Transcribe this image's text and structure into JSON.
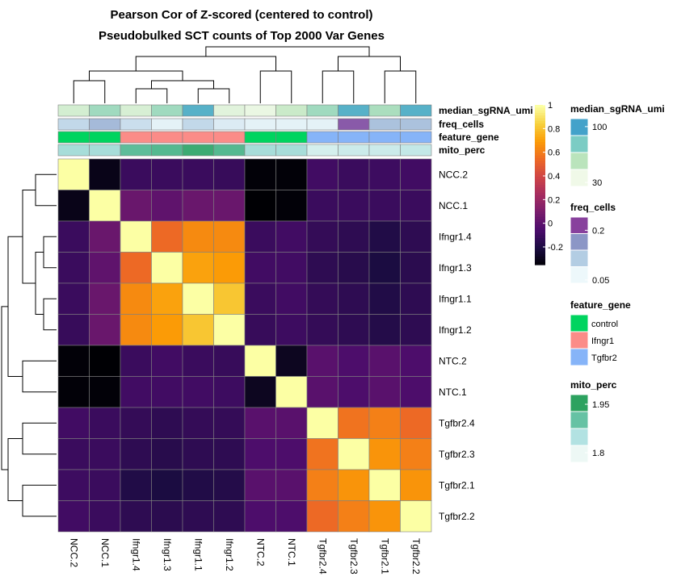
{
  "chart_data": {
    "type": "heatmap",
    "title": "Pearson Cor of Z-scored (centered to control)",
    "subtitle": "Pseudobulked SCT counts of Top 2000 Var Genes",
    "rows": [
      "NCC.2",
      "NCC.1",
      "Ifngr1.4",
      "Ifngr1.3",
      "Ifngr1.1",
      "Ifngr1.2",
      "NTC.2",
      "NTC.1",
      "Tgfbr2.4",
      "Tgfbr2.3",
      "Tgfbr2.1",
      "Tgfbr2.2"
    ],
    "columns": [
      "NCC.2",
      "NCC.1",
      "Ifngr1.4",
      "Ifngr1.3",
      "Ifngr1.1",
      "Ifngr1.2",
      "NTC.2",
      "NTC.1",
      "Tgfbr2.4",
      "Tgfbr2.3",
      "Tgfbr2.1",
      "Tgfbr2.2"
    ],
    "values": [
      [
        1.0,
        -0.3,
        -0.1,
        -0.1,
        -0.1,
        -0.11,
        -0.34,
        -0.34,
        -0.08,
        -0.1,
        -0.09,
        -0.08
      ],
      [
        -0.3,
        1.0,
        0.05,
        0.02,
        0.05,
        0.05,
        -0.36,
        -0.34,
        -0.1,
        -0.1,
        -0.1,
        -0.1
      ],
      [
        -0.1,
        0.05,
        1.0,
        0.55,
        0.65,
        0.65,
        -0.1,
        -0.08,
        -0.12,
        -0.14,
        -0.18,
        -0.14
      ],
      [
        -0.1,
        0.02,
        0.55,
        1.0,
        0.72,
        0.7,
        -0.08,
        -0.08,
        -0.14,
        -0.16,
        -0.2,
        -0.15
      ],
      [
        -0.1,
        0.05,
        0.65,
        0.72,
        1.0,
        0.82,
        -0.1,
        -0.08,
        -0.12,
        -0.14,
        -0.18,
        -0.14
      ],
      [
        -0.11,
        0.05,
        0.65,
        0.7,
        0.82,
        1.0,
        -0.11,
        -0.09,
        -0.12,
        -0.14,
        -0.17,
        -0.14
      ],
      [
        -0.34,
        -0.36,
        -0.1,
        -0.08,
        -0.1,
        -0.11,
        1.0,
        -0.28,
        0.0,
        -0.04,
        0.0,
        -0.04
      ],
      [
        -0.34,
        -0.34,
        -0.08,
        -0.08,
        -0.08,
        -0.09,
        -0.28,
        1.0,
        0.0,
        -0.04,
        0.0,
        -0.04
      ],
      [
        -0.08,
        -0.1,
        -0.12,
        -0.14,
        -0.12,
        -0.12,
        0.0,
        0.0,
        1.0,
        0.58,
        0.62,
        0.55
      ],
      [
        -0.1,
        -0.1,
        -0.14,
        -0.16,
        -0.14,
        -0.14,
        -0.04,
        -0.04,
        0.58,
        1.0,
        0.68,
        0.62
      ],
      [
        -0.09,
        -0.1,
        -0.18,
        -0.2,
        -0.18,
        -0.17,
        0.0,
        0.0,
        0.62,
        0.68,
        1.0,
        0.68
      ],
      [
        -0.08,
        -0.1,
        -0.14,
        -0.15,
        -0.14,
        -0.14,
        -0.04,
        -0.04,
        0.55,
        0.62,
        0.68,
        1.0
      ]
    ],
    "color_scale": {
      "min": -0.35,
      "max": 1,
      "ticks": [
        "1",
        "0.8",
        "0.6",
        "0.4",
        "0.2",
        "0",
        "-0.2"
      ],
      "tick_values": [
        1,
        0.8,
        0.6,
        0.4,
        0.2,
        0,
        -0.2
      ],
      "palette": "inferno"
    },
    "annotations": [
      {
        "name": "median_sgRNA_umi",
        "values": [
          40,
          65,
          38,
          65,
          100,
          33,
          28,
          45,
          65,
          100,
          60,
          100
        ],
        "range": [
          25,
          110
        ],
        "legend_ticks": [
          "100",
          "30"
        ],
        "legend_tick_values": [
          100,
          30
        ],
        "colors": [
          "#f0f9e8",
          "#bae4bc",
          "#7bccc4",
          "#43a2ca"
        ]
      },
      {
        "name": "freq_cells",
        "values": [
          0.09,
          0.13,
          0.08,
          0.05,
          0.09,
          0.06,
          0.05,
          0.05,
          0.05,
          0.22,
          0.12,
          0.12
        ],
        "range": [
          0.04,
          0.24
        ],
        "legend_ticks": [
          "0.2",
          "0.05"
        ],
        "legend_tick_values": [
          0.2,
          0.05
        ],
        "colors": [
          "#edf8fb",
          "#b3cde3",
          "#8c96c6",
          "#88419d"
        ]
      },
      {
        "name": "feature_gene",
        "categorical": true,
        "values": [
          "control",
          "control",
          "Ifngr1",
          "Ifngr1",
          "Ifngr1",
          "Ifngr1",
          "control",
          "control",
          "Tgfbr2",
          "Tgfbr2",
          "Tgfbr2",
          "Tgfbr2"
        ],
        "categories": [
          "control",
          "Ifngr1",
          "Tgfbr2"
        ],
        "category_colors": {
          "control": "#00d45f",
          "Ifngr1": "#fb8c88",
          "Tgfbr2": "#86b4f8"
        }
      },
      {
        "name": "mito_perc",
        "values": [
          1.85,
          1.85,
          1.92,
          1.93,
          1.96,
          1.93,
          1.85,
          1.85,
          1.8,
          1.81,
          1.81,
          1.82
        ],
        "range": [
          1.77,
          1.98
        ],
        "legend_ticks": [
          "1.95",
          "1.8"
        ],
        "legend_tick_values": [
          1.95,
          1.8
        ],
        "colors": [
          "#edf8f5",
          "#b2e2e2",
          "#66c2a4",
          "#2ca25f"
        ]
      }
    ]
  }
}
